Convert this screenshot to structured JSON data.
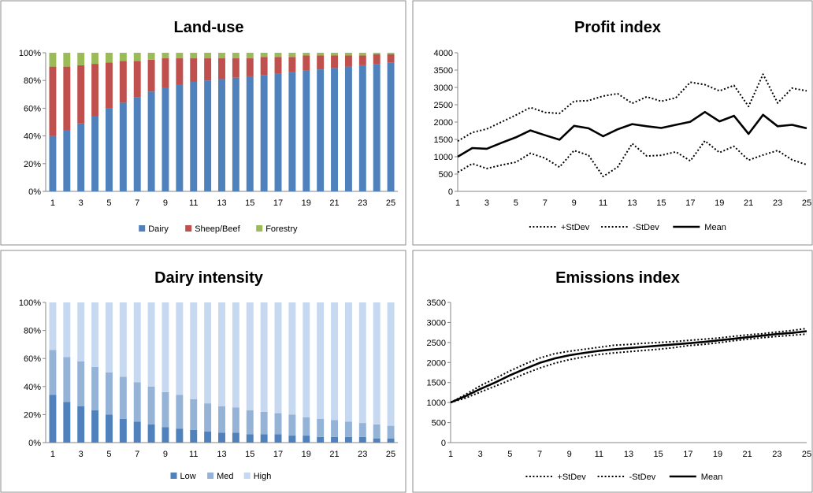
{
  "chart_data": [
    {
      "id": "landuse",
      "type": "bar",
      "stacked": true,
      "percent": true,
      "title": "Land-use",
      "categories": [
        1,
        2,
        3,
        4,
        5,
        6,
        7,
        8,
        9,
        10,
        11,
        12,
        13,
        14,
        15,
        16,
        17,
        18,
        19,
        20,
        21,
        22,
        23,
        24,
        25
      ],
      "x_tick_labels": [
        "1",
        "3",
        "5",
        "7",
        "9",
        "11",
        "13",
        "15",
        "17",
        "19",
        "21",
        "23",
        "25"
      ],
      "y_tick_labels": [
        "0%",
        "20%",
        "40%",
        "60%",
        "80%",
        "100%"
      ],
      "ylim": [
        0,
        100
      ],
      "legend_position": "bottom",
      "series": [
        {
          "name": "Dairy",
          "color": "#4f81bd",
          "values": [
            40,
            44,
            49,
            54,
            60,
            64,
            68,
            72,
            75,
            77,
            79,
            80,
            81,
            82,
            83,
            84,
            85,
            86,
            87,
            88,
            89,
            90,
            91,
            92,
            93
          ]
        },
        {
          "name": "Sheep/Beef",
          "color": "#c0504d",
          "values": [
            50,
            46,
            42,
            38,
            33,
            30,
            26,
            23,
            21,
            19,
            17,
            16,
            15,
            14,
            13,
            13,
            12,
            11,
            11,
            10,
            9,
            8,
            7,
            7,
            6
          ]
        },
        {
          "name": "Forestry",
          "color": "#9bbb59",
          "values": [
            10,
            10,
            9,
            8,
            7,
            6,
            6,
            5,
            4,
            4,
            4,
            4,
            4,
            4,
            4,
            3,
            3,
            3,
            2,
            2,
            2,
            2,
            2,
            1,
            1
          ]
        }
      ]
    },
    {
      "id": "profit",
      "type": "line",
      "title": "Profit index",
      "x": [
        1,
        2,
        3,
        4,
        5,
        6,
        7,
        8,
        9,
        10,
        11,
        12,
        13,
        14,
        15,
        16,
        17,
        18,
        19,
        20,
        21,
        22,
        23,
        24,
        25
      ],
      "x_tick_labels": [
        "1",
        "3",
        "5",
        "7",
        "9",
        "11",
        "13",
        "15",
        "17",
        "19",
        "21",
        "23",
        "25"
      ],
      "y_tick_labels": [
        "0",
        "500",
        "1000",
        "1500",
        "2000",
        "2500",
        "3000",
        "3500",
        "4000"
      ],
      "ylim": [
        0,
        4000
      ],
      "legend_position": "bottom",
      "series": [
        {
          "name": "+StDev",
          "style": "dotted",
          "values": [
            1450,
            1700,
            1800,
            2000,
            2200,
            2420,
            2280,
            2250,
            2600,
            2620,
            2750,
            2820,
            2540,
            2730,
            2600,
            2700,
            3150,
            3080,
            2900,
            3060,
            2450,
            3380,
            2550,
            2980,
            2900
          ]
        },
        {
          "name": "-StDev",
          "style": "dotted",
          "values": [
            550,
            800,
            660,
            760,
            840,
            1100,
            960,
            700,
            1180,
            1040,
            430,
            700,
            1380,
            1020,
            1040,
            1140,
            880,
            1460,
            1120,
            1300,
            900,
            1050,
            1180,
            910,
            770
          ]
        },
        {
          "name": "Mean",
          "style": "solid",
          "values": [
            1000,
            1250,
            1230,
            1400,
            1560,
            1760,
            1620,
            1490,
            1890,
            1820,
            1590,
            1790,
            1940,
            1880,
            1830,
            1920,
            2010,
            2290,
            2020,
            2180,
            1660,
            2210,
            1880,
            1920,
            1820
          ]
        }
      ]
    },
    {
      "id": "dairy",
      "type": "bar",
      "stacked": true,
      "percent": true,
      "title": "Dairy intensity",
      "categories": [
        1,
        2,
        3,
        4,
        5,
        6,
        7,
        8,
        9,
        10,
        11,
        12,
        13,
        14,
        15,
        16,
        17,
        18,
        19,
        20,
        21,
        22,
        23,
        24,
        25
      ],
      "x_tick_labels": [
        "1",
        "3",
        "5",
        "7",
        "9",
        "11",
        "13",
        "15",
        "17",
        "19",
        "21",
        "23",
        "25"
      ],
      "y_tick_labels": [
        "0%",
        "20%",
        "40%",
        "60%",
        "80%",
        "100%"
      ],
      "ylim": [
        0,
        100
      ],
      "legend_position": "bottom",
      "series": [
        {
          "name": "Low",
          "color": "#4f81bd",
          "values": [
            34,
            29,
            26,
            23,
            20,
            17,
            15,
            13,
            11,
            10,
            9,
            8,
            7,
            7,
            6,
            6,
            6,
            5,
            5,
            4,
            4,
            4,
            4,
            3,
            3
          ]
        },
        {
          "name": "Med",
          "color": "#95b3d7",
          "values": [
            32,
            32,
            32,
            31,
            30,
            30,
            28,
            27,
            25,
            24,
            22,
            20,
            19,
            18,
            17,
            16,
            15,
            15,
            13,
            13,
            12,
            11,
            10,
            10,
            9
          ]
        },
        {
          "name": "High",
          "color": "#c6d9f1",
          "values": [
            34,
            39,
            42,
            46,
            50,
            53,
            57,
            60,
            64,
            66,
            69,
            72,
            74,
            75,
            77,
            78,
            79,
            80,
            82,
            83,
            84,
            85,
            86,
            87,
            88
          ]
        }
      ]
    },
    {
      "id": "emissions",
      "type": "line",
      "title": "Emissions index",
      "x": [
        1,
        2,
        3,
        4,
        5,
        6,
        7,
        8,
        9,
        10,
        11,
        12,
        13,
        14,
        15,
        16,
        17,
        18,
        19,
        20,
        21,
        22,
        23,
        24,
        25
      ],
      "x_tick_labels": [
        "1",
        "3",
        "5",
        "7",
        "9",
        "11",
        "13",
        "15",
        "17",
        "19",
        "21",
        "23",
        "25"
      ],
      "y_tick_labels": [
        "0",
        "500",
        "1000",
        "1500",
        "2000",
        "2500",
        "3000",
        "3500"
      ],
      "ylim": [
        0,
        3500
      ],
      "legend_position": "bottom",
      "series": [
        {
          "name": "+StDev",
          "style": "dotted",
          "values": [
            1000,
            1200,
            1420,
            1600,
            1790,
            1960,
            2110,
            2220,
            2280,
            2330,
            2380,
            2430,
            2450,
            2480,
            2500,
            2520,
            2550,
            2580,
            2610,
            2650,
            2690,
            2720,
            2760,
            2800,
            2850
          ]
        },
        {
          "name": "-StDev",
          "style": "dotted",
          "values": [
            1000,
            1110,
            1260,
            1410,
            1560,
            1720,
            1860,
            1980,
            2070,
            2140,
            2200,
            2240,
            2270,
            2300,
            2330,
            2370,
            2420,
            2450,
            2490,
            2540,
            2580,
            2620,
            2650,
            2680,
            2710
          ]
        },
        {
          "name": "Mean",
          "style": "solid",
          "values": [
            1000,
            1160,
            1340,
            1500,
            1680,
            1840,
            1990,
            2100,
            2180,
            2240,
            2290,
            2330,
            2360,
            2390,
            2420,
            2450,
            2480,
            2510,
            2550,
            2590,
            2630,
            2670,
            2710,
            2740,
            2780
          ]
        }
      ]
    }
  ]
}
